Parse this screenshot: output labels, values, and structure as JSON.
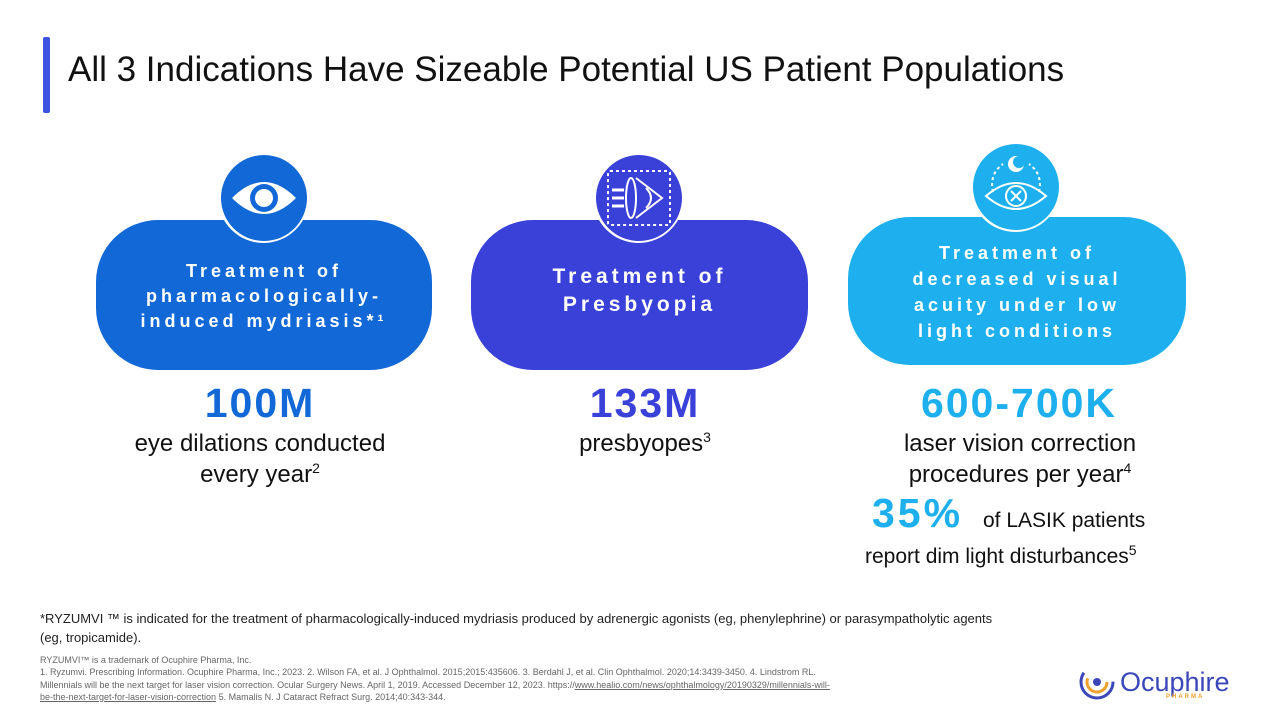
{
  "title": "All 3 Indications Have Sizeable Potential US Patient Populations",
  "colors": {
    "accent": "#3a53e0",
    "col1": "#1268d6",
    "col2": "#3a41d8",
    "col3": "#1eb0ee"
  },
  "indications": [
    {
      "icon": "eye-icon",
      "pill_lines": [
        "Treatment of",
        "pharmacologically-",
        "induced mydriasis*¹"
      ],
      "stat": "100M",
      "desc_lines": [
        "eye dilations conducted",
        "every year"
      ],
      "desc_sup": "2"
    },
    {
      "icon": "lens-eye-icon",
      "pill_lines": [
        "Treatment of",
        "Presbyopia"
      ],
      "stat": "133M",
      "desc_lines": [
        "presbyopes"
      ],
      "desc_sup": "3"
    },
    {
      "icon": "night-vision-eye-icon",
      "pill_lines": [
        "Treatment of",
        "decreased visual",
        "acuity under low",
        "light conditions"
      ],
      "stat": "600-700K",
      "desc_lines": [
        "laser vision correction",
        "procedures per year"
      ],
      "desc_sup": "4",
      "extra_stat": "35%",
      "extra_text_1": "of LASIK patients",
      "extra_text_2": "report dim light disturbances",
      "extra_sup": "5"
    }
  ],
  "footnote": "*RYZUMVI ™ is indicated for the treatment of pharmacologically-induced mydriasis produced by adrenergic agonists (eg, phenylephrine)  or parasympatholytic agents (eg, tropicamide).",
  "references": {
    "line1": "RYZUMVI™ is a trademark of Ocuphire Pharma, Inc.",
    "line2": "1. Ryzumvi. Prescribing Information. Ocuphire Pharma, Inc.; 2023. 2. Wilson FA, et al. J Ophthalmol. 2015;2015:435606. 3. Berdahl J, et al. Clin Ophthalmol. 2020;14:3439-3450. 4. Lindstrom RL.",
    "line3a": "Millennials  will be the next target for laser vision correction. Ocular Surgery News. April 1, 2019. Accessed December 12, 2023. https://",
    "link": "www.healio.com/news/ophthalmology/20190329/millennials-will-",
    "line4a": "be-the-next-target-for-laser-vision-correction",
    "line4b": " 5. Mamalis N.  J Cataract Refract Surg. 2014;40:343-344."
  },
  "logo": {
    "name": "Ocuphire",
    "sub": "PHARMA"
  }
}
